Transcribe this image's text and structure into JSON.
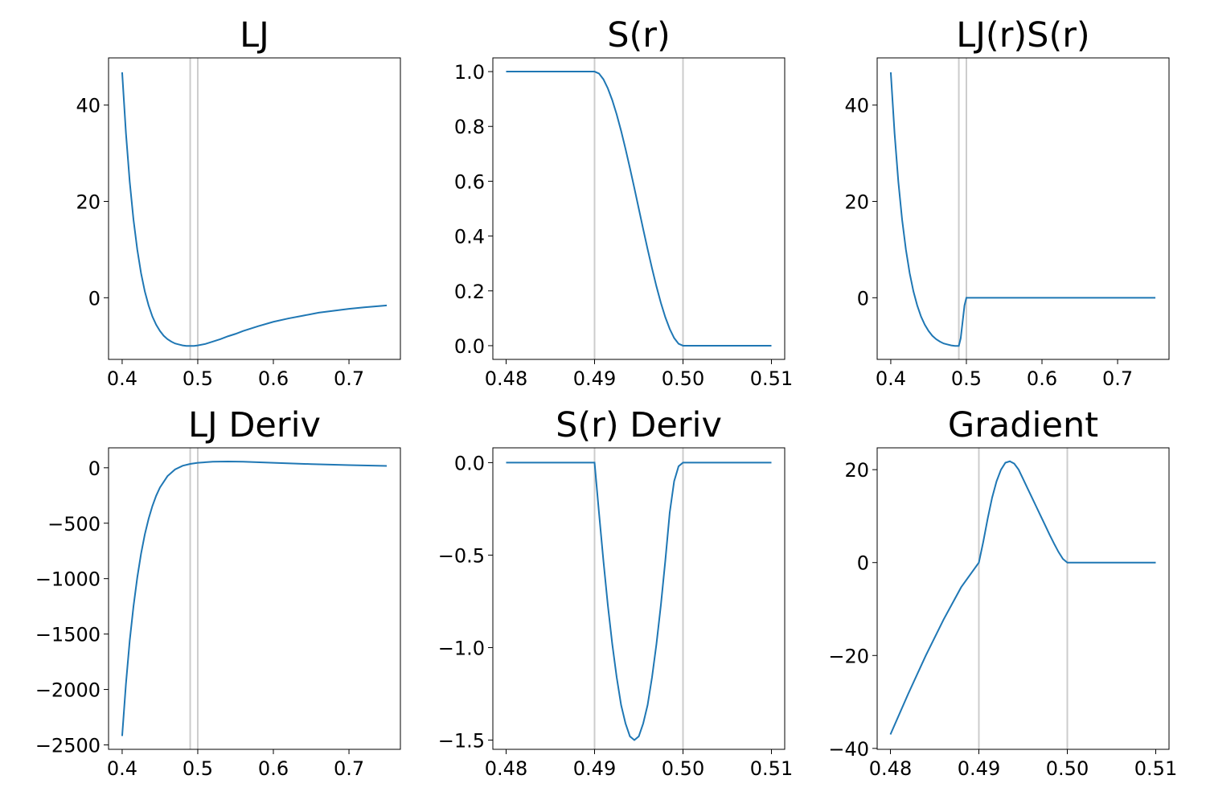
{
  "figure": {
    "line_color": "#1f77b4",
    "vline_color": "#cccccc"
  },
  "chart_data": [
    {
      "id": "lj",
      "type": "line",
      "title": "LJ",
      "xlim": [
        0.382,
        0.768
      ],
      "ylim": [
        -12.8,
        49.8
      ],
      "xticks": [
        0.4,
        0.5,
        0.6,
        0.7
      ],
      "xticklabels": [
        "0.4",
        "0.5",
        "0.6",
        "0.7"
      ],
      "yticks": [
        0,
        20,
        40
      ],
      "yticklabels": [
        "0",
        "20",
        "40"
      ],
      "vlines": [
        0.49,
        0.5
      ],
      "series": [
        {
          "x": [
            0.4,
            0.405,
            0.41,
            0.415,
            0.42,
            0.425,
            0.43,
            0.435,
            0.44,
            0.445,
            0.45,
            0.455,
            0.46,
            0.465,
            0.47,
            0.475,
            0.48,
            0.485,
            0.49,
            0.495,
            0.5,
            0.51,
            0.52,
            0.53,
            0.54,
            0.55,
            0.56,
            0.58,
            0.6,
            0.62,
            0.64,
            0.66,
            0.68,
            0.7,
            0.72,
            0.75
          ],
          "y": [
            46.8,
            34.2,
            24.1,
            16.2,
            10.0,
            5.1,
            1.3,
            -1.6,
            -3.9,
            -5.6,
            -6.9,
            -7.9,
            -8.6,
            -9.1,
            -9.5,
            -9.7,
            -9.9,
            -10.0,
            -10.0,
            -10.0,
            -9.9,
            -9.6,
            -9.1,
            -8.6,
            -8.0,
            -7.5,
            -6.9,
            -5.9,
            -5.0,
            -4.3,
            -3.7,
            -3.1,
            -2.7,
            -2.3,
            -2.0,
            -1.6
          ]
        }
      ]
    },
    {
      "id": "s",
      "type": "line",
      "title": "S(r)",
      "xlim": [
        0.4785,
        0.5115
      ],
      "ylim": [
        -0.05,
        1.05
      ],
      "xticks": [
        0.48,
        0.49,
        0.5,
        0.51
      ],
      "xticklabels": [
        "0.48",
        "0.49",
        "0.50",
        "0.51"
      ],
      "yticks": [
        0.0,
        0.2,
        0.4,
        0.6,
        0.8,
        1.0
      ],
      "yticklabels": [
        "0.0",
        "0.2",
        "0.4",
        "0.6",
        "0.8",
        "1.0"
      ],
      "vlines": [
        0.49,
        0.5
      ],
      "series": [
        {
          "x": [
            0.48,
            0.49,
            0.4905,
            0.491,
            0.4915,
            0.492,
            0.4925,
            0.493,
            0.4935,
            0.494,
            0.4945,
            0.495,
            0.4955,
            0.496,
            0.4965,
            0.497,
            0.4975,
            0.498,
            0.4985,
            0.499,
            0.4995,
            0.5,
            0.51
          ],
          "y": [
            1.0,
            1.0,
            0.993,
            0.972,
            0.939,
            0.896,
            0.844,
            0.784,
            0.718,
            0.648,
            0.575,
            0.5,
            0.425,
            0.352,
            0.282,
            0.216,
            0.156,
            0.104,
            0.061,
            0.028,
            0.007,
            0.0,
            0.0
          ]
        }
      ]
    },
    {
      "id": "ljs",
      "type": "line",
      "title": "LJ(r)S(r)",
      "xlim": [
        0.382,
        0.768
      ],
      "ylim": [
        -12.8,
        49.8
      ],
      "xticks": [
        0.4,
        0.5,
        0.6,
        0.7
      ],
      "xticklabels": [
        "0.4",
        "0.5",
        "0.6",
        "0.7"
      ],
      "yticks": [
        0,
        20,
        40
      ],
      "yticklabels": [
        "0",
        "20",
        "40"
      ],
      "vlines": [
        0.49,
        0.5
      ],
      "series": [
        {
          "x": [
            0.4,
            0.405,
            0.41,
            0.415,
            0.42,
            0.425,
            0.43,
            0.435,
            0.44,
            0.445,
            0.45,
            0.455,
            0.46,
            0.465,
            0.47,
            0.475,
            0.48,
            0.485,
            0.49,
            0.4925,
            0.495,
            0.4975,
            0.5,
            0.55,
            0.6,
            0.65,
            0.7,
            0.75
          ],
          "y": [
            46.8,
            34.2,
            24.1,
            16.2,
            10.0,
            5.1,
            1.3,
            -1.6,
            -3.9,
            -5.6,
            -6.9,
            -7.9,
            -8.6,
            -9.1,
            -9.5,
            -9.7,
            -9.9,
            -10.0,
            -10.0,
            -8.4,
            -5.0,
            -1.6,
            0.0,
            0.0,
            0.0,
            0.0,
            0.0,
            0.0
          ]
        }
      ]
    },
    {
      "id": "ljd",
      "type": "line",
      "title": "LJ Deriv",
      "xlim": [
        0.382,
        0.768
      ],
      "ylim": [
        -2540,
        180
      ],
      "xticks": [
        0.4,
        0.5,
        0.6,
        0.7
      ],
      "xticklabels": [
        "0.4",
        "0.5",
        "0.6",
        "0.7"
      ],
      "yticks": [
        -2500,
        -2000,
        -1500,
        -1000,
        -500,
        0
      ],
      "yticklabels": [
        "−2500",
        "−2000",
        "−1500",
        "−1000",
        "−500",
        "0"
      ],
      "vlines": [
        0.49,
        0.5
      ],
      "series": [
        {
          "x": [
            0.4,
            0.405,
            0.41,
            0.415,
            0.42,
            0.425,
            0.43,
            0.435,
            0.44,
            0.445,
            0.45,
            0.46,
            0.47,
            0.48,
            0.49,
            0.5,
            0.52,
            0.54,
            0.56,
            0.6,
            0.65,
            0.7,
            0.75
          ],
          "y": [
            -2420,
            -1950,
            -1560,
            -1250,
            -990,
            -775,
            -600,
            -460,
            -345,
            -252,
            -178,
            -75,
            -15,
            18,
            35,
            45,
            55,
            57,
            55,
            45,
            33,
            24,
            17
          ]
        }
      ]
    },
    {
      "id": "sd",
      "type": "line",
      "title": "S(r) Deriv",
      "xlim": [
        0.4785,
        0.5115
      ],
      "ylim": [
        -1.55,
        0.08
      ],
      "xticks": [
        0.48,
        0.49,
        0.5,
        0.51
      ],
      "xticklabels": [
        "0.48",
        "0.49",
        "0.50",
        "0.51"
      ],
      "yticks": [
        -1.5,
        -1.0,
        -0.5,
        0.0
      ],
      "yticklabels": [
        "−1.5",
        "−1.0",
        "−0.5",
        "0.0"
      ],
      "vlines": [
        0.49,
        0.5
      ],
      "series": [
        {
          "x": [
            0.48,
            0.49,
            0.4905,
            0.491,
            0.4915,
            0.492,
            0.4925,
            0.493,
            0.4935,
            0.494,
            0.4945,
            0.495,
            0.4955,
            0.496,
            0.4965,
            0.497,
            0.4975,
            0.498,
            0.4985,
            0.499,
            0.4995,
            0.5,
            0.51
          ],
          "y": [
            0.0,
            0.0,
            -0.27,
            -0.53,
            -0.77,
            -0.98,
            -1.16,
            -1.31,
            -1.41,
            -1.48,
            -1.5,
            -1.48,
            -1.41,
            -1.31,
            -1.16,
            -0.98,
            -0.77,
            -0.53,
            -0.27,
            -0.1,
            -0.02,
            0.0,
            0.0
          ]
        }
      ]
    },
    {
      "id": "grad",
      "type": "line",
      "title": "Gradient",
      "xlim": [
        0.4785,
        0.5115
      ],
      "ylim": [
        -40.2,
        24.7
      ],
      "xticks": [
        0.48,
        0.49,
        0.5,
        0.51
      ],
      "xticklabels": [
        "0.48",
        "0.49",
        "0.50",
        "0.51"
      ],
      "yticks": [
        -40,
        -20,
        0,
        20
      ],
      "yticklabels": [
        "−40",
        "−20",
        "0",
        "20"
      ],
      "vlines": [
        0.49,
        0.5
      ],
      "series": [
        {
          "x": [
            0.48,
            0.482,
            0.484,
            0.486,
            0.488,
            0.49,
            0.4905,
            0.491,
            0.4915,
            0.492,
            0.4925,
            0.493,
            0.4935,
            0.494,
            0.4945,
            0.495,
            0.4955,
            0.496,
            0.4965,
            0.497,
            0.4975,
            0.498,
            0.4985,
            0.499,
            0.4995,
            0.5,
            0.51
          ],
          "y": [
            -37.0,
            -28.3,
            -20.0,
            -12.3,
            -5.3,
            0.0,
            4.5,
            9.5,
            14.0,
            17.5,
            20.0,
            21.5,
            21.8,
            21.3,
            20.0,
            18.0,
            16.0,
            14.0,
            12.0,
            10.0,
            8.0,
            6.0,
            4.1,
            2.3,
            0.8,
            0.0,
            0.0
          ]
        }
      ]
    }
  ]
}
